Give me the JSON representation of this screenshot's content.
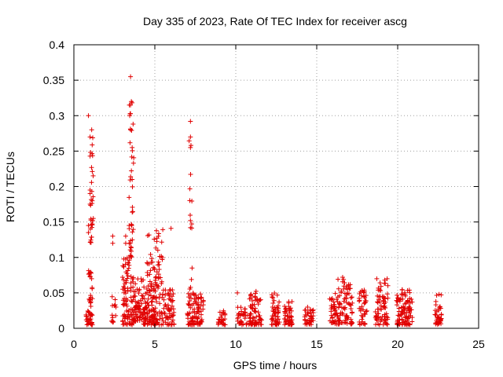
{
  "chart_data": {
    "type": "scatter",
    "title": "Day 335 of 2023, Rate Of TEC Index for receiver ascg",
    "xlabel": "GPS time / hours",
    "ylabel": "ROTI / TECUs",
    "xlim": [
      0,
      25
    ],
    "ylim": [
      0,
      0.4
    ],
    "xticks": [
      "0",
      "5",
      "10",
      "15",
      "20",
      "25"
    ],
    "yticks": [
      "0",
      "0.05",
      "0.1",
      "0.15",
      "0.2",
      "0.25",
      "0.3",
      "0.35",
      "0.4"
    ],
    "grid": true,
    "marker": "+",
    "color": "#e00000",
    "clusters": [
      {
        "x": [
          0.75,
          1.15
        ],
        "lo": 0.005,
        "hi": 0.025,
        "n": 30
      },
      {
        "x": [
          0.9,
          1.2
        ],
        "lo": 0.03,
        "hi": 0.09,
        "n": 20
      },
      {
        "x": [
          1.0,
          1.2
        ],
        "lo": 0.12,
        "hi": 0.3,
        "n": 30
      },
      {
        "x": [
          2.3,
          2.6
        ],
        "lo": 0.005,
        "hi": 0.045,
        "n": 14
      },
      {
        "x": [
          3.0,
          3.7
        ],
        "lo": 0.005,
        "hi": 0.1,
        "n": 90
      },
      {
        "x": [
          3.4,
          3.7
        ],
        "lo": 0.1,
        "hi": 0.32,
        "n": 40
      },
      {
        "x": [
          3.7,
          4.3
        ],
        "lo": 0.01,
        "hi": 0.07,
        "n": 60
      },
      {
        "x": [
          4.3,
          5.0
        ],
        "lo": 0.005,
        "hi": 0.06,
        "n": 90
      },
      {
        "x": [
          4.5,
          4.9
        ],
        "lo": 0.06,
        "hi": 0.14,
        "n": 16
      },
      {
        "x": [
          4.9,
          5.5
        ],
        "lo": 0.005,
        "hi": 0.14,
        "n": 80
      },
      {
        "x": [
          5.5,
          6.2
        ],
        "lo": 0.005,
        "hi": 0.06,
        "n": 60
      },
      {
        "x": [
          7.0,
          8.0
        ],
        "lo": 0.005,
        "hi": 0.05,
        "n": 90
      },
      {
        "x": [
          7.1,
          7.3
        ],
        "lo": 0.05,
        "hi": 0.29,
        "n": 12
      },
      {
        "x": [
          8.9,
          9.4
        ],
        "lo": 0.005,
        "hi": 0.025,
        "n": 24
      },
      {
        "x": [
          10.1,
          10.7
        ],
        "lo": 0.005,
        "hi": 0.03,
        "n": 30
      },
      {
        "x": [
          10.8,
          11.6
        ],
        "lo": 0.005,
        "hi": 0.055,
        "n": 70
      },
      {
        "x": [
          12.2,
          12.7
        ],
        "lo": 0.005,
        "hi": 0.05,
        "n": 50
      },
      {
        "x": [
          13.0,
          13.5
        ],
        "lo": 0.005,
        "hi": 0.04,
        "n": 50
      },
      {
        "x": [
          14.2,
          14.8
        ],
        "lo": 0.005,
        "hi": 0.03,
        "n": 40
      },
      {
        "x": [
          15.8,
          16.3
        ],
        "lo": 0.005,
        "hi": 0.05,
        "n": 40
      },
      {
        "x": [
          16.3,
          17.2
        ],
        "lo": 0.005,
        "hi": 0.07,
        "n": 80
      },
      {
        "x": [
          17.6,
          18.1
        ],
        "lo": 0.005,
        "hi": 0.055,
        "n": 40
      },
      {
        "x": [
          18.6,
          19.4
        ],
        "lo": 0.005,
        "hi": 0.07,
        "n": 70
      },
      {
        "x": [
          19.9,
          20.9
        ],
        "lo": 0.005,
        "hi": 0.055,
        "n": 100
      },
      {
        "x": [
          22.3,
          22.7
        ],
        "lo": 0.005,
        "hi": 0.055,
        "n": 40
      }
    ],
    "points": [
      {
        "x": 3.5,
        "y": 0.355
      },
      {
        "x": 3.5,
        "y": 0.315
      },
      {
        "x": 3.55,
        "y": 0.32
      },
      {
        "x": 3.45,
        "y": 0.3
      },
      {
        "x": 3.5,
        "y": 0.28
      },
      {
        "x": 3.6,
        "y": 0.255
      },
      {
        "x": 3.6,
        "y": 0.21
      },
      {
        "x": 7.2,
        "y": 0.292
      },
      {
        "x": 7.2,
        "y": 0.27
      },
      {
        "x": 7.2,
        "y": 0.255
      },
      {
        "x": 7.2,
        "y": 0.152
      },
      {
        "x": 7.2,
        "y": 0.142
      },
      {
        "x": 6.0,
        "y": 0.141
      },
      {
        "x": 7.3,
        "y": 0.085
      },
      {
        "x": 0.9,
        "y": 0.3
      },
      {
        "x": 1.1,
        "y": 0.28
      },
      {
        "x": 1.0,
        "y": 0.27
      },
      {
        "x": 1.0,
        "y": 0.243
      },
      {
        "x": 1.0,
        "y": 0.195
      },
      {
        "x": 1.0,
        "y": 0.19
      },
      {
        "x": 0.9,
        "y": 0.145
      },
      {
        "x": 0.9,
        "y": 0.135
      },
      {
        "x": 1.2,
        "y": 0.155
      },
      {
        "x": 2.4,
        "y": 0.13
      },
      {
        "x": 2.4,
        "y": 0.12
      },
      {
        "x": 3.2,
        "y": 0.13
      },
      {
        "x": 3.2,
        "y": 0.12
      },
      {
        "x": 16.6,
        "y": 0.072
      },
      {
        "x": 19.2,
        "y": 0.068
      },
      {
        "x": 10.1,
        "y": 0.05
      }
    ]
  }
}
